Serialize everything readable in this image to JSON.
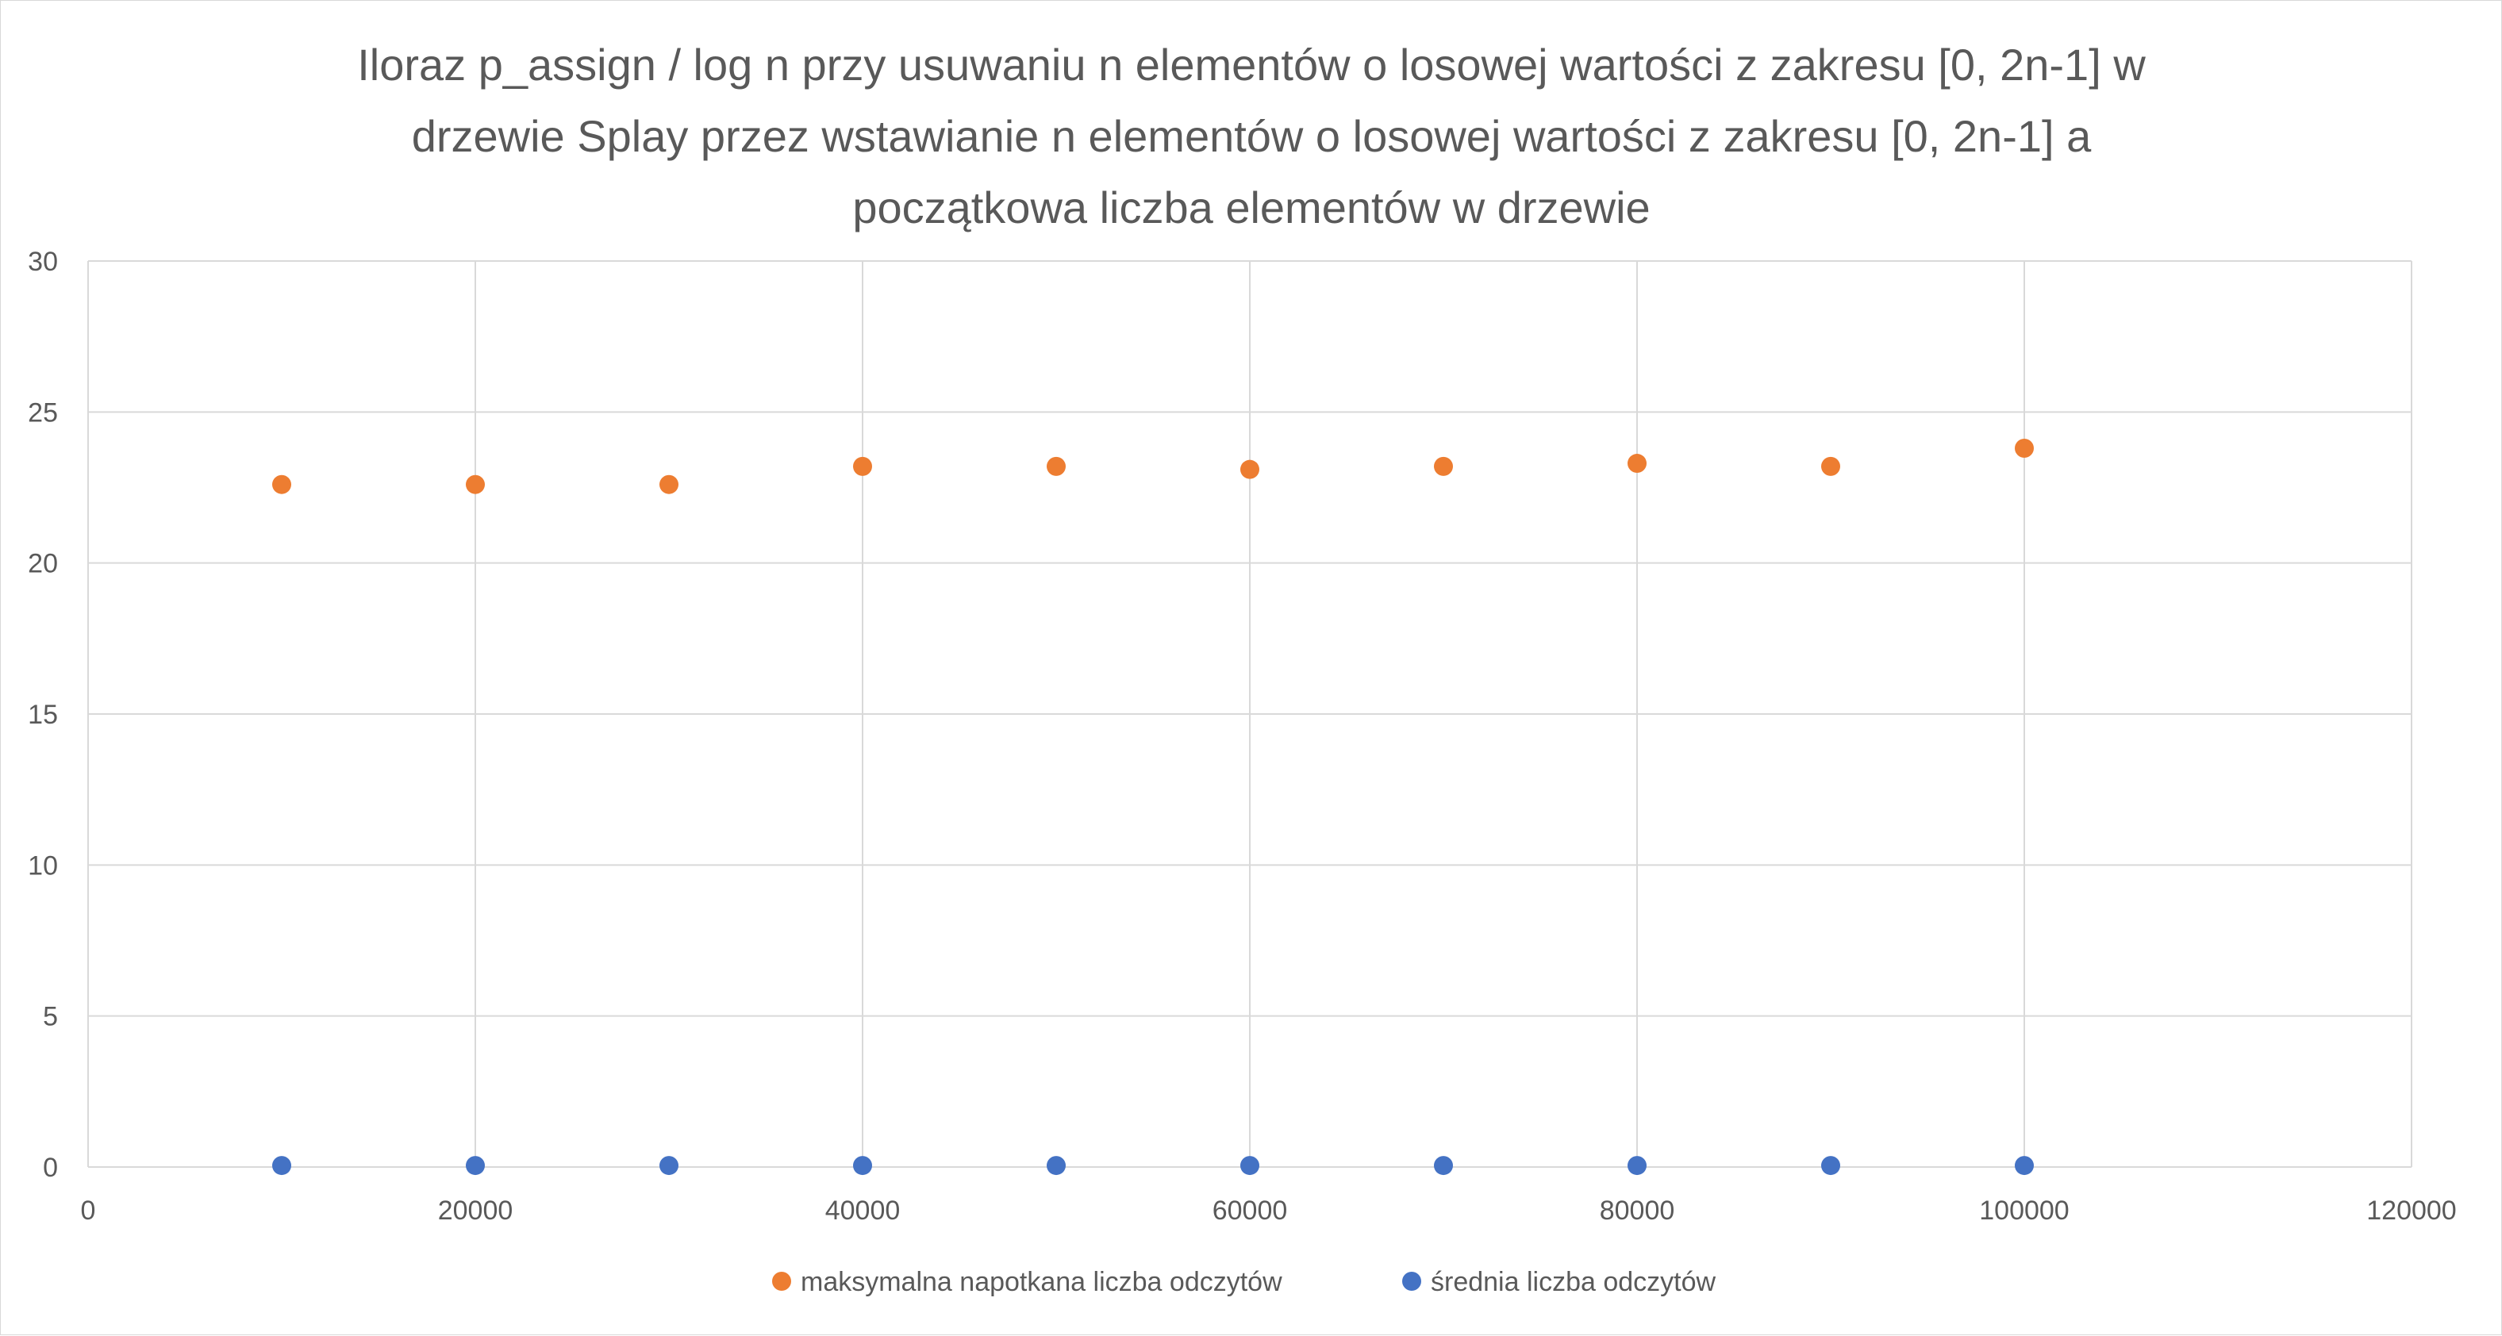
{
  "chart_data": {
    "type": "scatter",
    "title_lines": [
      "Iloraz p_assign / log n przy usuwaniu n elementów o losowej wartości z zakresu [0, 2n-1] w",
      "drzewie Splay przez wstawianie n elementów o losowej wartości z zakresu [0, 2n-1] a",
      "początkowa liczba elementów w drzewie"
    ],
    "xlim": [
      0,
      120000
    ],
    "ylim": [
      0,
      30
    ],
    "x_ticks": [
      0,
      20000,
      40000,
      60000,
      80000,
      100000,
      120000
    ],
    "y_ticks": [
      0,
      5,
      10,
      15,
      20,
      25,
      30
    ],
    "grid": true,
    "legend_position": "bottom",
    "series": [
      {
        "name": "maksymalna napotkana liczba odczytów",
        "color": "#ED7D31",
        "x": [
          10000,
          20000,
          30000,
          40000,
          50000,
          60000,
          70000,
          80000,
          90000,
          100000
        ],
        "y": [
          22.6,
          22.6,
          22.6,
          23.2,
          23.2,
          23.1,
          23.2,
          23.3,
          23.2,
          23.8
        ]
      },
      {
        "name": "średnia liczba odczytów",
        "color": "#4472C4",
        "x": [
          10000,
          20000,
          30000,
          40000,
          50000,
          60000,
          70000,
          80000,
          90000,
          100000
        ],
        "y": [
          0.05,
          0.05,
          0.05,
          0.05,
          0.05,
          0.05,
          0.05,
          0.05,
          0.05,
          0.05
        ]
      }
    ]
  }
}
